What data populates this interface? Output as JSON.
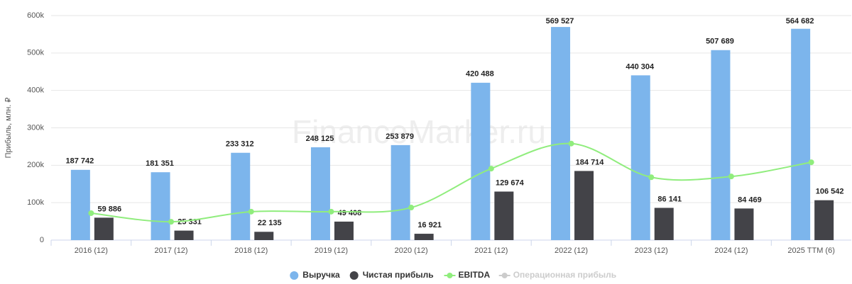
{
  "chart_data": {
    "type": "bar",
    "watermark": "FinanceMarker.ru",
    "y_label": "Прибыль, млн. ₽",
    "categories": [
      "2016 (12)",
      "2017 (12)",
      "2018 (12)",
      "2019 (12)",
      "2020 (12)",
      "2021 (12)",
      "2022 (12)",
      "2023 (12)",
      "2024 (12)",
      "2025 TTM (6)"
    ],
    "ylim": [
      0,
      600000
    ],
    "yticks": [
      0,
      {
        "value": 100000,
        "label": "100k"
      },
      {
        "value": 200000,
        "label": "200k"
      },
      {
        "value": 300000,
        "label": "300k"
      },
      {
        "value": 400000,
        "label": "400k"
      },
      {
        "value": 500000,
        "label": "500k"
      },
      {
        "value": 600000,
        "label": "600k"
      }
    ],
    "grid": true,
    "legend": "bottom",
    "series": [
      {
        "name": "Выручка",
        "type": "bar",
        "color": "#7cb5ec",
        "values": [
          187742,
          181351,
          233312,
          248125,
          253879,
          420488,
          569527,
          440304,
          507689,
          564682
        ],
        "value_labels": [
          "187 742",
          "181 351",
          "233 312",
          "248 125",
          "253 879",
          "420 488",
          "569 527",
          "440 304",
          "507 689",
          "564 682"
        ]
      },
      {
        "name": "Чистая прибыль",
        "type": "bar",
        "color": "#434348",
        "values": [
          59886,
          25331,
          22135,
          49408,
          16921,
          129674,
          184714,
          86141,
          84469,
          106542
        ],
        "value_labels": [
          "59 886",
          "25 331",
          "22 135",
          "49 408",
          "16 921",
          "129 674",
          "184 714",
          "86 141",
          "84 469",
          "106 542"
        ]
      },
      {
        "name": "EBITDA",
        "type": "line",
        "color": "#90ed7d",
        "values": [
          72000,
          49000,
          76000,
          76000,
          87000,
          191000,
          258000,
          168000,
          170000,
          208000
        ]
      },
      {
        "name": "Операционная прибыль",
        "type": "line",
        "color": "#cccccc",
        "visible": false,
        "values": [
          null,
          null,
          null,
          null,
          null,
          null,
          null,
          null,
          null,
          null
        ]
      }
    ]
  }
}
